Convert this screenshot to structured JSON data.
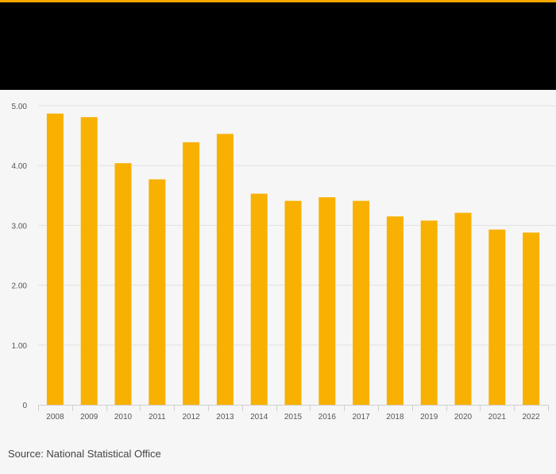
{
  "colors": {
    "accent": "#f5a800",
    "bar": "#f8b100",
    "header": "#000000",
    "background": "#f6f6f6",
    "grid": "#e2e2e2",
    "text": "#555555"
  },
  "chart_data": {
    "type": "bar",
    "categories": [
      "2008",
      "2009",
      "2010",
      "2011",
      "2012",
      "2013",
      "2014",
      "2015",
      "2016",
      "2017",
      "2018",
      "2019",
      "2020",
      "2021",
      "2022"
    ],
    "values": [
      4.87,
      4.81,
      4.04,
      3.77,
      4.39,
      4.53,
      3.53,
      3.41,
      3.47,
      3.41,
      3.15,
      3.08,
      3.21,
      2.93,
      2.88
    ],
    "yticks": [
      0,
      1,
      2,
      3,
      4,
      5
    ],
    "ytick_labels": [
      "0",
      "1.00",
      "2.00",
      "3.00",
      "4.00",
      "5.00"
    ],
    "ylim": [
      0,
      5
    ],
    "grid": true,
    "title": "",
    "xlabel": "",
    "ylabel": ""
  },
  "footer": {
    "source": "Source: National Statistical Office"
  }
}
